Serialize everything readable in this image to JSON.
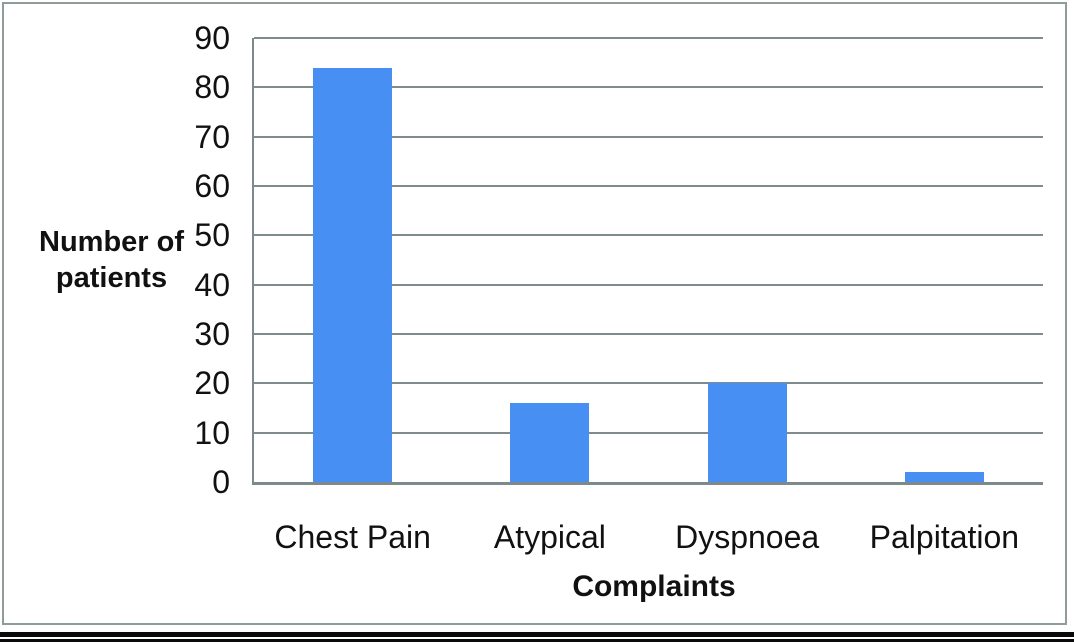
{
  "figure": {
    "kind": "document-figure-bar-chart"
  },
  "colors": {
    "bar": "#478ff2",
    "gridline": "#7f8c8d",
    "axis_line": "#7d8a8c",
    "frame_border": "#8f9c9c",
    "text": "#111111",
    "bottom_rules": "#0a0a0a"
  },
  "chart_data": {
    "type": "bar",
    "title": "",
    "categories": [
      "Chest Pain",
      "Atypical",
      "Dyspnoea",
      "Palpitation"
    ],
    "values": [
      84,
      16,
      20,
      2
    ],
    "xlabel": "Complaints",
    "ylabel": "Number of patients",
    "ylabel_lines": [
      "Number of",
      "patients"
    ],
    "ylim": [
      0,
      90
    ],
    "ytick_step": 10,
    "yticks": [
      90,
      80,
      70,
      60,
      50,
      40,
      30,
      20,
      10,
      0
    ],
    "grid": "horizontal",
    "legend_position": "none",
    "bar_gap_ratio": 0.6
  }
}
